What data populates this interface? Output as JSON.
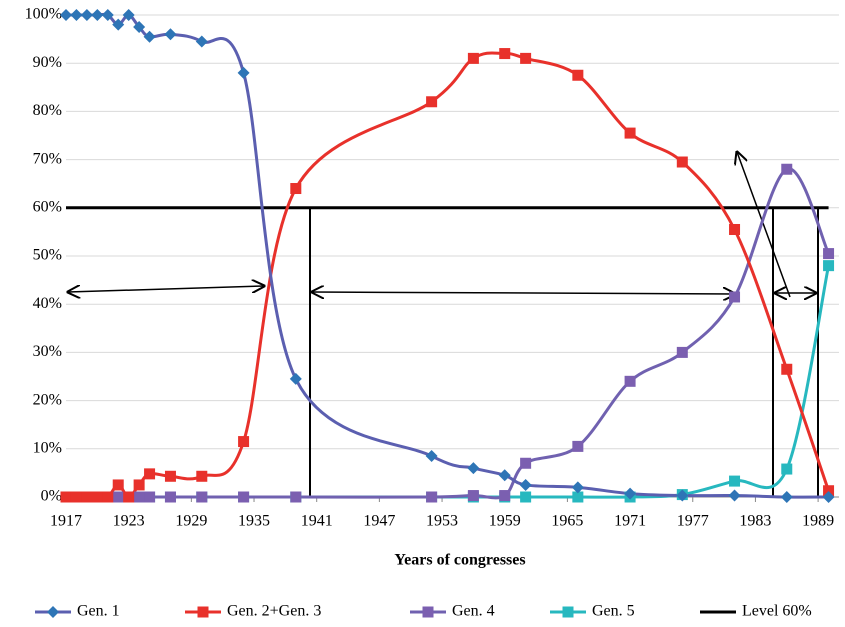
{
  "chart_data": {
    "type": "line",
    "xlabel": "Years of congresses",
    "x": [
      1917,
      1918,
      1919,
      1920,
      1921,
      1922,
      1923,
      1924,
      1925,
      1927,
      1930,
      1934,
      1939,
      1952,
      1956,
      1959,
      1961,
      1966,
      1971,
      1976,
      1981,
      1986,
      1990
    ],
    "series": [
      {
        "name": "Gen. 1",
        "color": "#5b5fb0",
        "marker": "diamond",
        "marker_color": "#2e75b6",
        "values": [
          100,
          100,
          100,
          100,
          100,
          98,
          100,
          97.5,
          95.5,
          96,
          94.5,
          88,
          24.5,
          8.5,
          6,
          4.5,
          2.5,
          2,
          0.7,
          0.3,
          0.3,
          0,
          0
        ]
      },
      {
        "name": "Gen. 2+Gen. 3",
        "color": "#e8312b",
        "marker": "square",
        "marker_color": "#e8312b",
        "values": [
          0,
          0,
          0,
          0,
          0,
          2.5,
          0,
          2.5,
          4.8,
          4.3,
          4.3,
          11.5,
          64,
          82,
          91,
          92,
          91,
          87.5,
          75.5,
          69.5,
          55.5,
          26.5,
          1.3
        ]
      },
      {
        "name": "Gen. 4",
        "color": "#7061b0",
        "marker": "square",
        "marker_color": "#7b5fb0",
        "values": [
          0,
          0,
          0,
          0,
          0,
          0,
          0,
          0,
          0,
          0,
          0,
          0,
          0,
          0,
          0.3,
          0.3,
          7,
          10.5,
          24,
          30,
          41.5,
          68,
          50.5
        ]
      },
      {
        "name": "Gen. 5",
        "color": "#27b8bf",
        "marker": "square",
        "marker_color": "#27b8bf",
        "values": [
          0,
          0,
          0,
          0,
          0,
          0,
          0,
          0,
          0,
          0,
          0,
          0,
          0,
          0,
          0,
          0,
          0,
          0,
          0,
          0.5,
          3.3,
          5.8,
          48
        ]
      }
    ],
    "reference_lines": [
      {
        "name": "Level 60%",
        "value": 60,
        "color": "#000000"
      }
    ],
    "xlim": [
      1917,
      1991
    ],
    "xticks": [
      1917,
      1923,
      1929,
      1935,
      1941,
      1947,
      1953,
      1959,
      1965,
      1971,
      1977,
      1983,
      1989
    ],
    "ylim": [
      0,
      100
    ],
    "yticks": [
      {
        "value": 0,
        "label": "0%"
      },
      {
        "value": 10,
        "label": "10%"
      },
      {
        "value": 20,
        "label": "20%"
      },
      {
        "value": 30,
        "label": "30%"
      },
      {
        "value": 40,
        "label": "40%"
      },
      {
        "value": 50,
        "label": "50%"
      },
      {
        "value": 60,
        "label": "60%"
      },
      {
        "value": 70,
        "label": "70%"
      },
      {
        "value": 80,
        "label": "80%"
      },
      {
        "value": 90,
        "label": "90%"
      },
      {
        "value": 100,
        "label": "100%"
      }
    ],
    "grid": true,
    "legend": "bottom"
  }
}
